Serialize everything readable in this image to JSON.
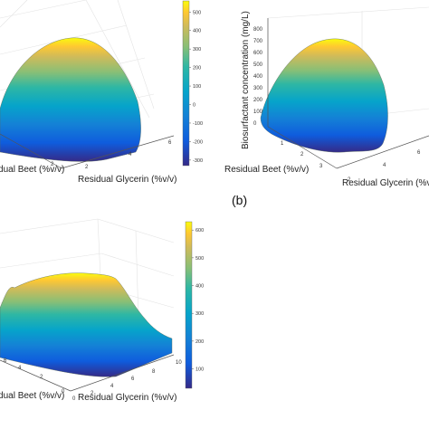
{
  "chart_data": [
    {
      "type": "surface",
      "panel_label": "",
      "xlabel": "Residual Glycerin (%v/v)",
      "ylabel": "Residual Beet (%v/v)",
      "zlabel": "",
      "x_ticks": [
        "2",
        "4",
        "6"
      ],
      "y_ticks": [
        "2"
      ],
      "colorbar": {
        "ticks": [
          "500",
          "400",
          "300",
          "200",
          "100",
          "0",
          "-100",
          "-200",
          "-300"
        ],
        "range": [
          -330,
          560
        ]
      }
    },
    {
      "type": "surface",
      "panel_label": "(b)",
      "xlabel": "Residual Glycerin (%v/v)",
      "ylabel": "Residual Beet (%v/v)",
      "zlabel": "Biosurfactant concentration (mg/L)",
      "x_ticks": [
        "2",
        "4",
        "6"
      ],
      "y_ticks": [
        "1",
        "2",
        "3"
      ],
      "z_ticks": [
        "0",
        "100",
        "200",
        "300",
        "400",
        "500",
        "600",
        "700",
        "800"
      ],
      "zlim": [
        0,
        800
      ]
    },
    {
      "type": "surface",
      "panel_label": "",
      "xlabel": "Residual Glycerin (%v/v)",
      "ylabel": "Residual Beet (%v/v)",
      "zlabel": "",
      "x_ticks": [
        "0",
        "2",
        "4",
        "6",
        "8",
        "10"
      ],
      "y_ticks": [
        "0",
        "2",
        "4",
        "6"
      ],
      "colorbar": {
        "ticks": [
          "600",
          "500",
          "400",
          "300",
          "200",
          "100"
        ],
        "range": [
          30,
          630
        ]
      }
    }
  ]
}
